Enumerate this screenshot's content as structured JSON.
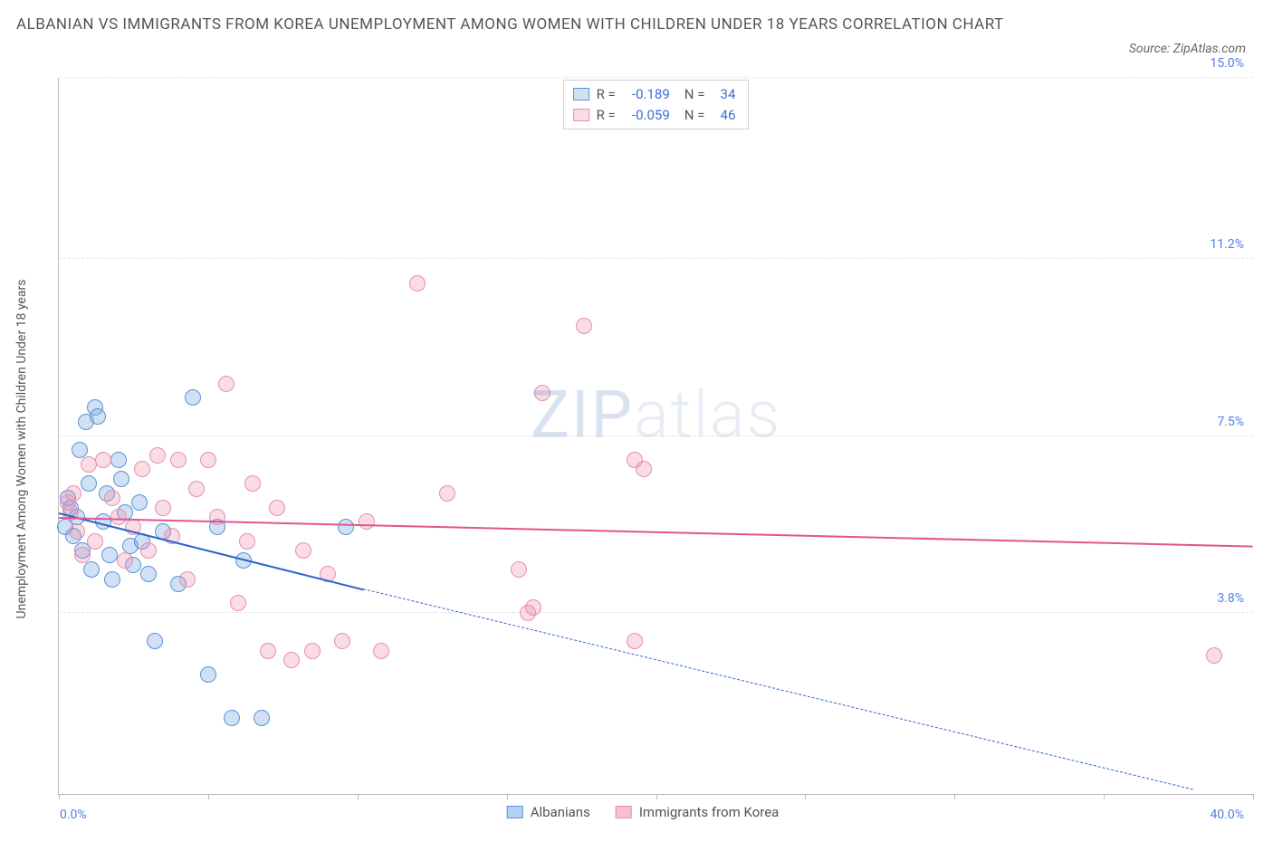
{
  "title": "ALBANIAN VS IMMIGRANTS FROM KOREA UNEMPLOYMENT AMONG WOMEN WITH CHILDREN UNDER 18 YEARS CORRELATION CHART",
  "source_label": "Source: ZipAtlas.com",
  "watermark_a": "ZIP",
  "watermark_b": "atlas",
  "chart": {
    "type": "scatter",
    "xlim": [
      0,
      40
    ],
    "ylim": [
      0,
      15
    ],
    "x_min_label": "0.0%",
    "x_max_label": "40.0%",
    "y_ticks": [
      3.8,
      7.5,
      11.2,
      15.0
    ],
    "y_tick_labels": [
      "3.8%",
      "7.5%",
      "11.2%",
      "15.0%"
    ],
    "x_tick_positions": [
      0,
      5,
      10,
      15,
      20,
      25,
      30,
      35,
      40
    ],
    "y_axis_label": "Unemployment Among Women with Children Under 18 years",
    "grid_color": "#e6e6e6",
    "axis_color": "#bbbbbb",
    "background_color": "#ffffff",
    "tick_label_color": "#4f7fe3",
    "marker_radius": 9,
    "marker_border_width": 1.5,
    "series": [
      {
        "name": "Albanians",
        "R_label": "R =",
        "R": "-0.189",
        "N_label": "N =",
        "N": "34",
        "fill": "rgba(120,170,230,0.35)",
        "stroke": "#5a93d6",
        "line_color": "#2e64c8",
        "trend": {
          "x0": 0,
          "y0": 5.9,
          "x1": 10.2,
          "y1": 4.3,
          "ext_x": 38,
          "ext_y": 0.1,
          "solid_width": 2.5
        },
        "points": [
          [
            0.2,
            5.6
          ],
          [
            0.3,
            6.2
          ],
          [
            0.4,
            6.0
          ],
          [
            0.5,
            5.4
          ],
          [
            0.6,
            5.8
          ],
          [
            0.7,
            7.2
          ],
          [
            0.8,
            5.1
          ],
          [
            0.9,
            7.8
          ],
          [
            1.0,
            6.5
          ],
          [
            1.1,
            4.7
          ],
          [
            1.2,
            8.1
          ],
          [
            1.3,
            7.9
          ],
          [
            1.5,
            5.7
          ],
          [
            1.6,
            6.3
          ],
          [
            1.7,
            5.0
          ],
          [
            1.8,
            4.5
          ],
          [
            2.0,
            7.0
          ],
          [
            2.1,
            6.6
          ],
          [
            2.2,
            5.9
          ],
          [
            2.4,
            5.2
          ],
          [
            2.5,
            4.8
          ],
          [
            2.7,
            6.1
          ],
          [
            2.8,
            5.3
          ],
          [
            3.0,
            4.6
          ],
          [
            3.2,
            3.2
          ],
          [
            3.5,
            5.5
          ],
          [
            4.0,
            4.4
          ],
          [
            4.5,
            8.3
          ],
          [
            5.0,
            2.5
          ],
          [
            5.3,
            5.6
          ],
          [
            5.8,
            1.6
          ],
          [
            6.2,
            4.9
          ],
          [
            6.8,
            1.6
          ],
          [
            9.6,
            5.6
          ]
        ]
      },
      {
        "name": "Immigrants from Korea",
        "R_label": "R =",
        "R": "-0.059",
        "N_label": "N =",
        "N": "46",
        "fill": "rgba(240,140,170,0.30)",
        "stroke": "#e68fb0",
        "line_color": "#e05590",
        "trend": {
          "x0": 0,
          "y0": 5.8,
          "x1": 40,
          "y1": 5.2,
          "solid_width": 2.5
        },
        "points": [
          [
            0.3,
            6.1
          ],
          [
            0.4,
            5.9
          ],
          [
            0.5,
            6.3
          ],
          [
            0.6,
            5.5
          ],
          [
            0.8,
            5.0
          ],
          [
            1.0,
            6.9
          ],
          [
            1.2,
            5.3
          ],
          [
            1.5,
            7.0
          ],
          [
            1.8,
            6.2
          ],
          [
            2.0,
            5.8
          ],
          [
            2.2,
            4.9
          ],
          [
            2.5,
            5.6
          ],
          [
            2.8,
            6.8
          ],
          [
            3.0,
            5.1
          ],
          [
            3.3,
            7.1
          ],
          [
            3.5,
            6.0
          ],
          [
            3.8,
            5.4
          ],
          [
            4.0,
            7.0
          ],
          [
            4.3,
            4.5
          ],
          [
            4.6,
            6.4
          ],
          [
            5.0,
            7.0
          ],
          [
            5.3,
            5.8
          ],
          [
            5.6,
            8.6
          ],
          [
            6.0,
            4.0
          ],
          [
            6.3,
            5.3
          ],
          [
            6.5,
            6.5
          ],
          [
            7.0,
            3.0
          ],
          [
            7.3,
            6.0
          ],
          [
            7.8,
            2.8
          ],
          [
            8.2,
            5.1
          ],
          [
            8.5,
            3.0
          ],
          [
            9.0,
            4.6
          ],
          [
            9.5,
            3.2
          ],
          [
            10.3,
            5.7
          ],
          [
            10.8,
            3.0
          ],
          [
            12.0,
            10.7
          ],
          [
            13.0,
            6.3
          ],
          [
            15.4,
            4.7
          ],
          [
            15.7,
            3.8
          ],
          [
            15.9,
            3.9
          ],
          [
            16.2,
            8.4
          ],
          [
            17.6,
            9.8
          ],
          [
            19.3,
            7.0
          ],
          [
            19.6,
            6.8
          ],
          [
            19.3,
            3.2
          ],
          [
            38.7,
            2.9
          ]
        ]
      }
    ],
    "legend_bottom": [
      {
        "label": "Albanians",
        "fill": "rgba(120,170,230,0.55)",
        "stroke": "#5a93d6"
      },
      {
        "label": "Immigrants from Korea",
        "fill": "rgba(240,140,170,0.55)",
        "stroke": "#e68fb0"
      }
    ]
  }
}
